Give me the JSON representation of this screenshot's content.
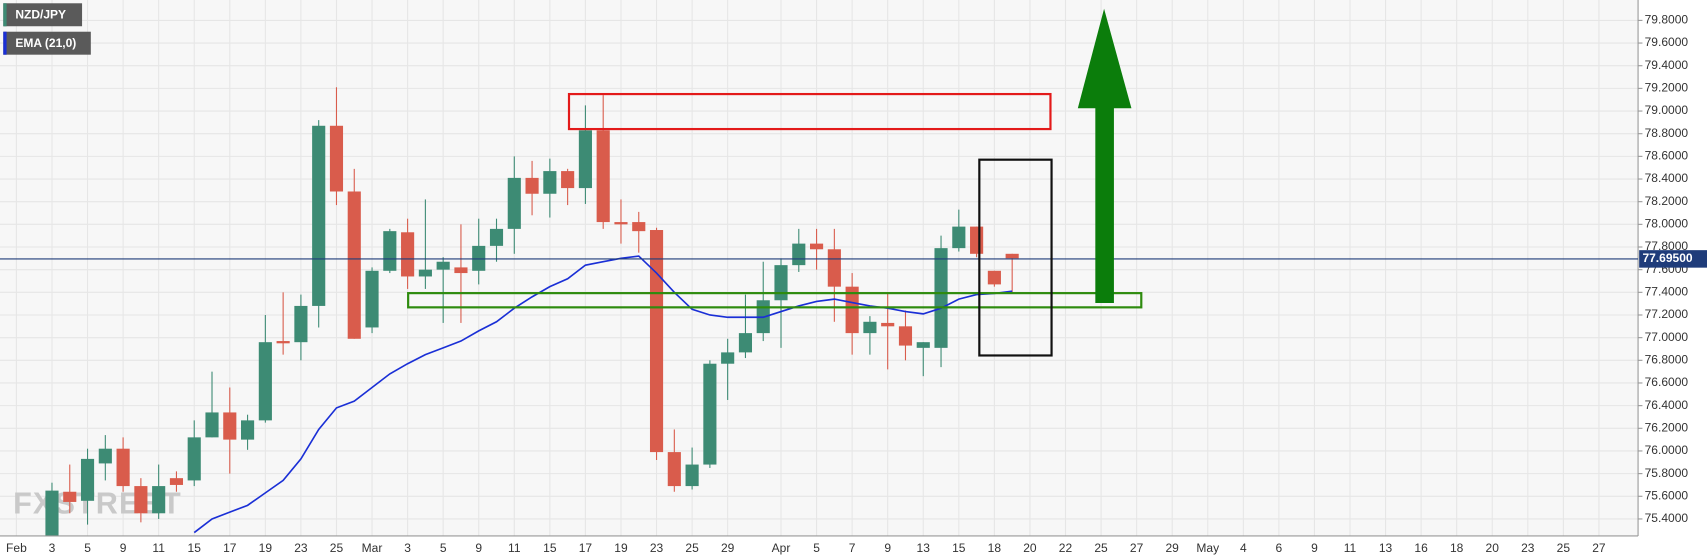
{
  "chart_data": {
    "type": "candlestick",
    "legend": [
      "NZD/JPY",
      "EMA (21,0)"
    ],
    "watermark": "FXSTREET",
    "categories": [
      "Feb",
      null,
      "3",
      null,
      "5",
      null,
      "9",
      null,
      "11",
      null,
      "15",
      null,
      "17",
      null,
      "19",
      null,
      "23",
      null,
      "25",
      null,
      "Mar",
      null,
      "3",
      null,
      "5",
      null,
      "9",
      null,
      "11",
      null,
      "15",
      null,
      "17",
      null,
      "19",
      null,
      "23",
      null,
      "25",
      null,
      "29",
      null,
      null,
      "Apr",
      null,
      "5",
      null,
      "7",
      null,
      "9",
      null,
      "13",
      null,
      "15",
      null,
      "18",
      null,
      "20",
      null,
      "22",
      null,
      "25",
      null,
      "27",
      null,
      "29",
      null,
      "May",
      null,
      "4",
      null,
      "6",
      null,
      "9",
      null,
      "11",
      null,
      "13",
      null,
      "16",
      null,
      "18",
      null,
      "20",
      null,
      "23",
      null,
      "25",
      null,
      "27"
    ],
    "up_color": "#3d8b74",
    "down_color": "#d95c4c",
    "open": [
      null,
      null,
      75.2,
      75.64,
      75.56,
      75.89,
      76.02,
      75.69,
      75.45,
      75.76,
      75.74,
      76.12,
      76.34,
      76.1,
      76.27,
      76.97,
      76.96,
      77.28,
      78.87,
      78.29,
      77.09,
      77.59,
      77.93,
      77.54,
      77.6,
      77.62,
      77.59,
      77.81,
      77.96,
      78.41,
      78.27,
      78.47,
      78.32,
      78.83,
      78.02,
      78.02,
      77.95,
      75.99,
      75.69,
      75.88,
      76.77,
      76.87,
      77.04,
      77.33,
      77.64,
      77.83,
      77.78,
      77.45,
      77.04,
      77.13,
      77.1,
      76.91,
      76.91,
      77.79,
      77.98,
      77.59,
      77.74,
      null,
      null,
      null,
      null,
      null,
      null,
      null,
      null,
      null,
      null,
      null,
      null,
      null,
      null,
      null,
      null,
      null,
      null,
      null,
      null,
      null,
      null,
      null,
      null,
      null,
      null,
      null,
      null,
      null,
      null,
      null,
      null,
      null
    ],
    "high": [
      null,
      null,
      75.72,
      75.88,
      76.02,
      76.14,
      76.12,
      75.76,
      75.88,
      75.82,
      76.27,
      76.7,
      76.56,
      76.32,
      77.2,
      77.4,
      77.38,
      78.92,
      79.21,
      78.49,
      77.62,
      77.96,
      78.05,
      78.22,
      77.71,
      78.0,
      78.05,
      78.05,
      78.6,
      78.56,
      78.58,
      78.49,
      79.05,
      79.14,
      78.22,
      78.11,
      77.97,
      76.19,
      76.03,
      76.8,
      76.99,
      77.38,
      77.67,
      77.7,
      77.96,
      77.96,
      77.96,
      77.57,
      77.19,
      77.4,
      77.24,
      76.96,
      77.9,
      78.13,
      77.98,
      77.59,
      77.74,
      null,
      null,
      null,
      null,
      null,
      null,
      null,
      null,
      null,
      null,
      null,
      null,
      null,
      null,
      null,
      null,
      null,
      null,
      null,
      null,
      null,
      null,
      null,
      null,
      null,
      null,
      null,
      null,
      null,
      null,
      null,
      null,
      null
    ],
    "low": [
      null,
      null,
      75.1,
      75.45,
      75.35,
      75.74,
      75.64,
      75.37,
      75.4,
      75.64,
      75.69,
      76.12,
      75.8,
      76.01,
      76.25,
      76.85,
      76.8,
      77.09,
      78.17,
      76.99,
      77.04,
      77.57,
      77.43,
      77.43,
      77.13,
      77.13,
      77.47,
      77.67,
      77.74,
      78.08,
      78.06,
      78.17,
      78.18,
      77.96,
      77.83,
      77.75,
      75.92,
      75.64,
      75.66,
      75.85,
      76.45,
      76.82,
      76.97,
      76.91,
      77.58,
      77.6,
      77.14,
      76.85,
      76.85,
      76.72,
      76.8,
      76.66,
      76.74,
      77.76,
      77.71,
      77.45,
      77.4,
      null,
      null,
      null,
      null,
      null,
      null,
      null,
      null,
      null,
      null,
      null,
      null,
      null,
      null,
      null,
      null,
      null,
      null,
      null,
      null,
      null,
      null,
      null,
      null,
      null,
      null,
      null,
      null,
      null,
      null,
      null,
      null,
      null
    ],
    "close": [
      null,
      null,
      75.65,
      75.55,
      75.93,
      76.02,
      75.69,
      75.45,
      75.69,
      75.7,
      76.12,
      76.34,
      76.1,
      76.27,
      76.96,
      76.95,
      77.28,
      78.87,
      78.29,
      76.99,
      77.59,
      77.94,
      77.54,
      77.6,
      77.67,
      77.57,
      77.81,
      77.96,
      78.41,
      78.27,
      78.47,
      78.32,
      78.83,
      78.02,
      78.0,
      77.94,
      75.99,
      75.69,
      75.88,
      76.77,
      76.87,
      77.04,
      77.33,
      77.64,
      77.83,
      77.78,
      77.45,
      77.04,
      77.14,
      77.1,
      76.93,
      76.96,
      77.79,
      77.98,
      77.74,
      77.47,
      77.7,
      null,
      null,
      null,
      null,
      null,
      null,
      null,
      null,
      null,
      null,
      null,
      null,
      null,
      null,
      null,
      null,
      null,
      null,
      null,
      null,
      null,
      null,
      null,
      null,
      null,
      null,
      null,
      null,
      null,
      null,
      null,
      null,
      null
    ],
    "series": [
      {
        "name": "EMA (21,0)",
        "color": "#1a2fd6",
        "values": [
          null,
          null,
          null,
          null,
          null,
          null,
          null,
          null,
          null,
          null,
          75.28,
          75.4,
          75.46,
          75.52,
          75.63,
          75.74,
          75.93,
          76.19,
          76.38,
          76.44,
          76.56,
          76.68,
          76.77,
          76.85,
          76.91,
          76.97,
          77.06,
          77.14,
          77.26,
          77.36,
          77.45,
          77.52,
          77.64,
          77.67,
          77.7,
          77.72,
          77.57,
          77.4,
          77.25,
          77.2,
          77.18,
          77.18,
          77.18,
          77.23,
          77.28,
          77.32,
          77.34,
          77.31,
          77.28,
          77.26,
          77.23,
          77.21,
          77.26,
          77.34,
          77.38,
          77.39,
          77.41,
          null,
          null,
          null,
          null,
          null,
          null,
          null,
          null,
          null,
          null,
          null,
          null,
          null,
          null,
          null,
          null,
          null,
          null,
          null,
          null,
          null,
          null,
          null,
          null,
          null,
          null,
          null,
          null,
          null,
          null,
          null,
          null,
          null
        ]
      }
    ],
    "ylim": [
      75.25,
      79.98
    ],
    "yticks": [
      {
        "value": 75.4,
        "label": "75.4000"
      },
      {
        "value": 75.6,
        "label": "75.6000"
      },
      {
        "value": 75.8,
        "label": "75.8000"
      },
      {
        "value": 76.0,
        "label": "76.0000"
      },
      {
        "value": 76.2,
        "label": "76.2000"
      },
      {
        "value": 76.4,
        "label": "76.4000"
      },
      {
        "value": 76.6,
        "label": "76.6000"
      },
      {
        "value": 76.8,
        "label": "76.8000"
      },
      {
        "value": 77.0,
        "label": "77.0000"
      },
      {
        "value": 77.2,
        "label": "77.2000"
      },
      {
        "value": 77.4,
        "label": "77.4000"
      },
      {
        "value": 77.6,
        "label": "77.6000"
      },
      {
        "value": 77.8,
        "label": "77.8000"
      },
      {
        "value": 78.0,
        "label": "78.0000"
      },
      {
        "value": 78.2,
        "label": "78.2000"
      },
      {
        "value": 78.4,
        "label": "78.4000"
      },
      {
        "value": 78.6,
        "label": "78.6000"
      },
      {
        "value": 78.8,
        "label": "78.8000"
      },
      {
        "value": 79.0,
        "label": "79.0000"
      },
      {
        "value": 79.2,
        "label": "79.2000"
      },
      {
        "value": 79.4,
        "label": "79.4000"
      },
      {
        "value": 79.6,
        "label": "79.6000"
      },
      {
        "value": 79.8,
        "label": "79.8000"
      }
    ],
    "last_price": {
      "value": 77.695,
      "label": "77.69500"
    },
    "grid": true
  }
}
